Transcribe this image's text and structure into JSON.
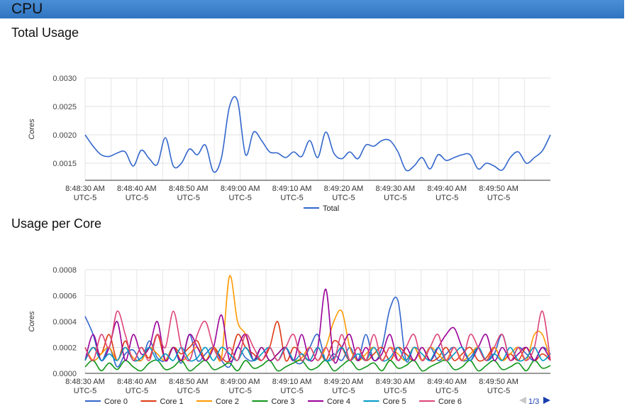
{
  "header": {
    "title": "CPU"
  },
  "sections": [
    {
      "title": "Total Usage"
    },
    {
      "title": "Usage per Core"
    }
  ],
  "chart_data": [
    {
      "type": "line",
      "title": "Total Usage",
      "ylabel": "Cores",
      "ylim": [
        0.0012,
        0.003
      ],
      "yticks": [
        "0.0030",
        "0.0025",
        "0.0020",
        "0.0015"
      ],
      "xlim_seconds": [
        0,
        90
      ],
      "xticks": [
        {
          "time": "8:48:30 AM",
          "tz": "UTC-5"
        },
        {
          "time": "8:48:40 AM",
          "tz": "UTC-5"
        },
        {
          "time": "8:48:50 AM",
          "tz": "UTC-5"
        },
        {
          "time": "8:49:00 AM",
          "tz": "UTC-5"
        },
        {
          "time": "8:49:10 AM",
          "tz": "UTC-5"
        },
        {
          "time": "8:49:20 AM",
          "tz": "UTC-5"
        },
        {
          "time": "8:49:30 AM",
          "tz": "UTC-5"
        },
        {
          "time": "8:49:40 AM",
          "tz": "UTC-5"
        },
        {
          "time": "8:49:50 AM",
          "tz": "UTC-5"
        }
      ],
      "legend": "bottom",
      "series": [
        {
          "name": "Total",
          "color": "#3366cc",
          "values": [
            0.002,
            0.0018,
            0.00165,
            0.00162,
            0.00168,
            0.0017,
            0.00145,
            0.00173,
            0.00158,
            0.00148,
            0.00195,
            0.00145,
            0.0015,
            0.00175,
            0.00165,
            0.00182,
            0.00135,
            0.0016,
            0.0025,
            0.0026,
            0.00165,
            0.00205,
            0.0019,
            0.0017,
            0.00168,
            0.0016,
            0.0017,
            0.00162,
            0.0019,
            0.0016,
            0.00205,
            0.00168,
            0.00158,
            0.0017,
            0.00158,
            0.00182,
            0.0018,
            0.0019,
            0.0019,
            0.0017,
            0.00138,
            0.00145,
            0.0016,
            0.0014,
            0.00165,
            0.00155,
            0.0016,
            0.00165,
            0.00165,
            0.0014,
            0.0015,
            0.00145,
            0.00138,
            0.0016,
            0.0017,
            0.0015,
            0.0016,
            0.00172,
            0.002
          ]
        }
      ]
    },
    {
      "type": "line",
      "title": "Usage per Core",
      "ylabel": "Cores",
      "ylim": [
        0,
        0.0008
      ],
      "yticks": [
        "0.0008",
        "0.0006",
        "0.0004",
        "0.0002",
        "0.0000"
      ],
      "xlim_seconds": [
        0,
        90
      ],
      "xticks": [
        {
          "time": "8:48:30 AM",
          "tz": "UTC-5"
        },
        {
          "time": "8:48:40 AM",
          "tz": "UTC-5"
        },
        {
          "time": "8:48:50 AM",
          "tz": "UTC-5"
        },
        {
          "time": "8:49:00 AM",
          "tz": "UTC-5"
        },
        {
          "time": "8:49:10 AM",
          "tz": "UTC-5"
        },
        {
          "time": "8:49:20 AM",
          "tz": "UTC-5"
        },
        {
          "time": "8:49:30 AM",
          "tz": "UTC-5"
        },
        {
          "time": "8:49:40 AM",
          "tz": "UTC-5"
        },
        {
          "time": "8:49:50 AM",
          "tz": "UTC-5"
        }
      ],
      "legend": "bottom",
      "legend_page": "1/3",
      "series": [
        {
          "name": "Core 0",
          "color": "#3366cc",
          "values": [
            0.00044,
            0.0003,
            0.0001,
            0.0002,
            5e-05,
            0.00015,
            0.00018,
            0.0001,
            0.00025,
            0.00012,
            0.0001,
            0.0002,
            8e-05,
            0.0003,
            0.0001,
            0.00015,
            0.0002,
            0.0001,
            5e-05,
            0.0002,
            0.00012,
            0.0001,
            0.0002,
            0.0001,
            0.00015,
            0.0002,
            0.0001,
            8e-05,
            0.0002,
            0.0003,
            0.0001,
            0.00015,
            0.0001,
            0.0002,
            0.0001,
            0.0003,
            0.0001,
            0.0002,
            0.0005,
            0.00056,
            0.0001,
            0.0002,
            0.0001,
            0.0002,
            0.0001,
            0.00015,
            0.0002,
            0.0001,
            0.00012,
            0.0002,
            0.0001,
            0.00015,
            0.0003,
            0.0001,
            0.0002,
            0.00015,
            0.0001,
            0.0002,
            0.00015
          ]
        },
        {
          "name": "Core 1",
          "color": "#dc3912",
          "values": [
            0.0001,
            0.0002,
            0.00015,
            0.0003,
            0.0001,
            0.00025,
            0.0001,
            0.0002,
            0.00012,
            0.0003,
            0.0001,
            0.0002,
            0.00015,
            0.0002,
            0.00025,
            0.0001,
            0.0002,
            0.00012,
            0.0001,
            0.0003,
            0.0002,
            0.00015,
            0.0001,
            0.0002,
            0.0004,
            0.0001,
            0.0002,
            0.00015,
            0.0001,
            0.0002,
            0.0001,
            0.00025,
            0.0002,
            0.0001,
            0.0002,
            0.0001,
            0.00015,
            0.0002,
            0.0001,
            0.0002,
            0.00015,
            0.0001,
            0.0002,
            0.0001,
            0.00012,
            0.0002,
            0.0001,
            0.00015,
            0.0002,
            0.0001,
            0.00012,
            0.0002,
            0.0001,
            0.00015,
            0.0001,
            0.0002,
            0.0001,
            0.00015,
            0.0001
          ]
        },
        {
          "name": "Core 2",
          "color": "#ff9900",
          "values": [
            0.0002,
            0.0001,
            0.00015,
            0.0002,
            0.0001,
            0.0002,
            0.00012,
            0.0001,
            0.0002,
            0.00015,
            0.0001,
            0.0002,
            0.0001,
            0.00015,
            0.0002,
            0.0001,
            0.0002,
            0.00012,
            0.00075,
            0.0004,
            0.0003,
            0.0001,
            0.0002,
            0.0001,
            0.00015,
            0.0002,
            0.0001,
            0.00012,
            0.0002,
            0.0001,
            0.0002,
            0.0004,
            0.00048,
            0.0002,
            0.0001,
            0.00015,
            0.0002,
            0.0001,
            0.0002,
            0.00015,
            0.0001,
            0.0002,
            0.0001,
            0.0002,
            0.00015,
            0.0001,
            0.0002,
            0.0001,
            0.00015,
            0.0002,
            0.0001,
            0.0002,
            0.0001,
            0.00015,
            0.0002,
            0.0001,
            0.0003,
            0.0003,
            0.0001
          ]
        },
        {
          "name": "Core 3",
          "color": "#109618",
          "values": [
            5e-05,
            0.0001,
            2e-05,
            8e-05,
            3e-05,
            0.0001,
            5e-05,
            2e-05,
            8e-05,
            0.0001,
            3e-05,
            5e-05,
            0.0001,
            2e-05,
            6e-05,
            0.0001,
            3e-05,
            5e-05,
            8e-05,
            2e-05,
            0.0001,
            4e-05,
            6e-05,
            0.0001,
            2e-05,
            5e-05,
            8e-05,
            0.0001,
            3e-05,
            5e-05,
            0.0001,
            2e-05,
            6e-05,
            0.0001,
            3e-05,
            5e-05,
            8e-05,
            2e-05,
            0.0001,
            4e-05,
            6e-05,
            0.0001,
            2e-05,
            5e-05,
            8e-05,
            0.0001,
            3e-05,
            5e-05,
            0.0001,
            2e-05,
            6e-05,
            0.0001,
            3e-05,
            5e-05,
            8e-05,
            2e-05,
            0.0001,
            4e-05,
            6e-05
          ]
        },
        {
          "name": "Core 4",
          "color": "#990099",
          "values": [
            0.0001,
            0.0003,
            0.0001,
            0.0002,
            0.0004,
            0.0001,
            0.0003,
            0.00015,
            0.0002,
            0.0004,
            0.0001,
            0.0002,
            0.0001,
            0.0003,
            0.0002,
            0.0001,
            0.0002,
            0.00045,
            0.0001,
            0.0002,
            0.0003,
            0.0001,
            0.0002,
            0.0001,
            0.00015,
            0.0002,
            0.0001,
            0.0003,
            0.0001,
            0.0002,
            0.00065,
            0.0001,
            0.0002,
            0.0003,
            0.0001,
            0.0002,
            0.0001,
            0.00015,
            0.0003,
            0.0001,
            0.0002,
            0.0001,
            0.0002,
            0.0001,
            0.0002,
            0.0003,
            0.00035,
            0.0002,
            0.0001,
            0.0002,
            0.0003,
            0.0001,
            0.0002,
            0.0001,
            0.00015,
            0.0002,
            0.0001,
            0.0002,
            0.0001
          ]
        },
        {
          "name": "Core 5",
          "color": "#0099c6",
          "values": [
            0.0001,
            0.0002,
            0.0001,
            0.00015,
            0.0001,
            0.0002,
            0.0001,
            0.00012,
            0.0002,
            0.0001,
            0.00015,
            0.0001,
            0.0002,
            0.0001,
            0.00012,
            0.0002,
            0.0001,
            0.0002,
            0.00015,
            0.0001,
            0.0002,
            0.0001,
            0.00015,
            0.0002,
            0.0001,
            0.0002,
            0.0001,
            0.00015,
            0.0001,
            0.0002,
            0.0001,
            0.00012,
            0.0002,
            0.0001,
            0.00015,
            0.0001,
            0.0002,
            0.0001,
            0.00012,
            0.0002,
            0.0001,
            0.0002,
            0.00015,
            0.0001,
            0.0002,
            0.0001,
            0.00015,
            0.0002,
            0.0001,
            0.0002,
            0.0001,
            0.00015,
            0.0001,
            0.0002,
            0.0001,
            0.00012,
            0.0002,
            0.0001,
            0.00015
          ]
        },
        {
          "name": "Core 6",
          "color": "#dd4477",
          "values": [
            0.0002,
            0.0001,
            0.0003,
            0.0002,
            0.00048,
            0.0003,
            0.0001,
            0.0002,
            0.0001,
            0.0003,
            0.0002,
            0.00048,
            0.0002,
            0.0001,
            0.0003,
            0.0004,
            0.0002,
            0.0001,
            0.0002,
            0.0001,
            0.0003,
            0.0002,
            0.0001,
            0.0002,
            0.0001,
            0.0002,
            0.0003,
            0.0001,
            0.0002,
            0.0001,
            0.0002,
            0.0001,
            0.0003,
            0.0001,
            0.0002,
            0.0001,
            0.0003,
            0.0001,
            0.0002,
            0.0001,
            0.0002,
            0.0003,
            0.0001,
            0.0002,
            0.0003,
            0.0001,
            0.0002,
            0.0001,
            0.0003,
            0.0002,
            0.0001,
            0.0002,
            0.0003,
            0.0001,
            0.0002,
            0.0001,
            0.0002,
            0.00048,
            0.0001
          ]
        }
      ]
    }
  ]
}
